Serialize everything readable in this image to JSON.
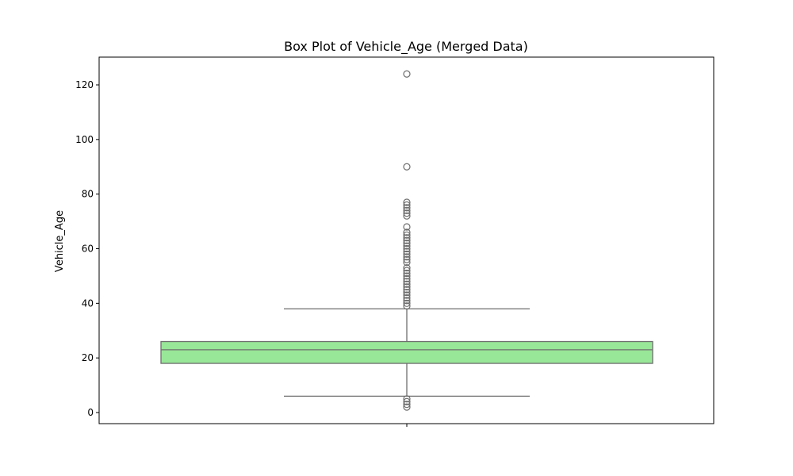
{
  "chart_data": {
    "type": "box",
    "title": "Box Plot of Vehicle_Age (Merged Data)",
    "xlabel": "",
    "ylabel": "Vehicle_Age",
    "ylim": [
      -4,
      130
    ],
    "yticks": [
      0,
      20,
      40,
      60,
      80,
      100,
      120
    ],
    "grid": false,
    "box": {
      "whisker_low": 6,
      "q1": 18,
      "median": 23,
      "q3": 26,
      "whisker_high": 38,
      "outliers": [
        2,
        3,
        4,
        5,
        39,
        40,
        41,
        42,
        43,
        44,
        45,
        46,
        47,
        48,
        49,
        50,
        51,
        52,
        53,
        55,
        56,
        57,
        58,
        59,
        60,
        61,
        62,
        63,
        64,
        65,
        66,
        68,
        72,
        73,
        74,
        75,
        76,
        77,
        90,
        124
      ]
    },
    "colors": {
      "box_fill": "#98e698",
      "line": "#6e6e6e",
      "outlier_edge": "#6e6e6e"
    }
  }
}
